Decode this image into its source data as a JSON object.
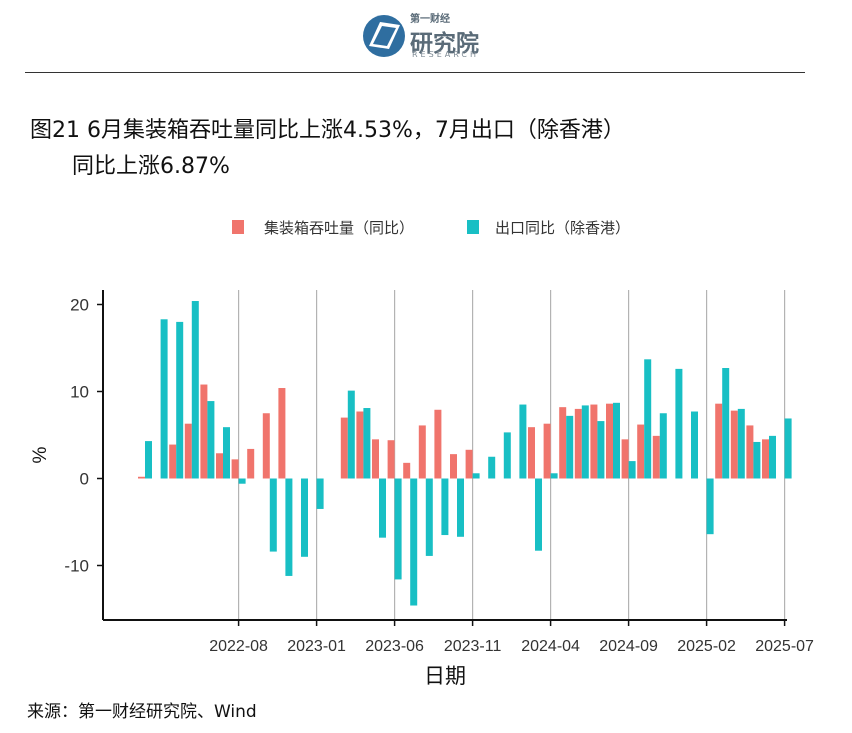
{
  "header": {
    "logo_top": "第一财经",
    "logo_cn": "研究院",
    "logo_en": "RESEARCH"
  },
  "title": {
    "line1": "图21 6月集装箱吞吐量同比上涨4.53%，7月出口（除香港）",
    "line2": "同比上涨6.87%"
  },
  "source": "来源：第一财经研究院、Wind",
  "colors": {
    "container": "#f0746c",
    "export": "#18bfc4"
  },
  "chart_data": {
    "type": "bar",
    "xlabel": "日期",
    "ylabel": "%",
    "ylim": [
      -16.5,
      22
    ],
    "yticks": [
      -10,
      0,
      10,
      20
    ],
    "x_tick_labels": [
      "2022-08",
      "2023-01",
      "2023-06",
      "2023-11",
      "2024-04",
      "2024-09",
      "2025-02",
      "2025-07"
    ],
    "legend_position": "top",
    "grid": "vertical only",
    "categories": [
      "2022-02",
      "2022-03",
      "2022-04",
      "2022-05",
      "2022-06",
      "2022-07",
      "2022-08",
      "2022-09",
      "2022-10",
      "2022-11",
      "2022-12",
      "2023-01",
      "2023-02",
      "2023-03",
      "2023-04",
      "2023-05",
      "2023-06",
      "2023-07",
      "2023-08",
      "2023-09",
      "2023-10",
      "2023-11",
      "2023-12",
      "2024-01",
      "2024-02",
      "2024-03",
      "2024-04",
      "2024-05",
      "2024-06",
      "2024-07",
      "2024-08",
      "2024-09",
      "2024-10",
      "2024-11",
      "2024-12",
      "2025-01",
      "2025-02",
      "2025-03",
      "2025-04",
      "2025-05",
      "2025-06",
      "2025-07"
    ],
    "series": [
      {
        "name": "集装箱吞吐量（同比）",
        "values": [
          0.2,
          null,
          3.9,
          6.3,
          10.8,
          2.9,
          2.2,
          3.4,
          7.5,
          10.4,
          null,
          null,
          null,
          7.0,
          7.7,
          4.5,
          4.4,
          1.8,
          6.1,
          7.9,
          2.8,
          3.3,
          null,
          null,
          null,
          5.9,
          6.3,
          8.2,
          8.0,
          8.5,
          8.6,
          4.5,
          6.2,
          4.9,
          null,
          null,
          null,
          8.6,
          7.8,
          6.1,
          4.5,
          null
        ]
      },
      {
        "name": "出口同比（除香港）",
        "values": [
          4.3,
          18.3,
          18.0,
          20.4,
          8.9,
          5.9,
          -0.6,
          null,
          -8.4,
          -11.2,
          -9.0,
          -3.5,
          null,
          10.1,
          8.1,
          -6.8,
          -11.6,
          -14.6,
          -8.9,
          -6.5,
          -6.7,
          0.6,
          2.5,
          5.3,
          8.5,
          -8.3,
          0.6,
          7.2,
          8.4,
          6.6,
          8.7,
          2.0,
          13.7,
          7.5,
          12.6,
          7.7,
          -6.4,
          12.7,
          8.0,
          4.2,
          4.9,
          6.9
        ]
      }
    ]
  }
}
